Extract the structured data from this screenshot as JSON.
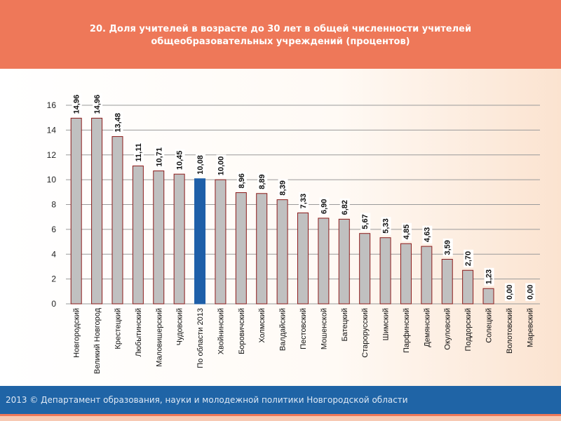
{
  "header": {
    "title_line1": "20. Доля учителей в возрасте до 30 лет в общей численности учителей",
    "title_line2": "общеобразовательных учреждений (процентов)"
  },
  "footer": {
    "text": "2013 © Департамент образования, науки и молодежной политики Новгородской области"
  },
  "colors": {
    "bar_fill": "#c0c0c0",
    "bar_edge": "#8b1a1a",
    "highlight_fill": "#1e5fa8",
    "header_bg": "#ee7859",
    "footer_bg": "#1f64a6"
  },
  "chart_data": {
    "type": "bar",
    "title": "20. Доля учителей в возрасте до 30 лет в общей численности учителей общеобразовательных учреждений (процентов)",
    "xlabel": "",
    "ylabel": "",
    "ylim": [
      0,
      16
    ],
    "yticks": [
      0,
      2,
      4,
      6,
      8,
      10,
      12,
      14,
      16
    ],
    "grid": true,
    "highlight_category": "По области 2013",
    "categories": [
      "Новгородский",
      "Великий Новгород",
      "Крестецкий",
      "Любытинский",
      "Маловишерский",
      "Чудовский",
      "По области 2013",
      "Хвойнинский",
      "Боровичский",
      "Холмский",
      "Валдайский",
      "Пестовский",
      "Мошенской",
      "Батецкий",
      "Старорусский",
      "Шимский",
      "Парфинский",
      "Демянский",
      "Окуловский",
      "Поддорский",
      "Солецкий",
      "Волотовский",
      "Маревский"
    ],
    "values": [
      14.96,
      14.96,
      13.48,
      11.11,
      10.71,
      10.45,
      10.08,
      10.0,
      8.96,
      8.89,
      8.39,
      7.33,
      6.9,
      6.82,
      5.67,
      5.33,
      4.85,
      4.63,
      3.59,
      2.7,
      1.23,
      0.0,
      0.0
    ],
    "value_labels": [
      "14,96",
      "14,96",
      "13,48",
      "11,11",
      "10,71",
      "10,45",
      "10,08",
      "10,00",
      "8,96",
      "8,89",
      "8,39",
      "7,33",
      "6,90",
      "6,82",
      "5,67",
      "5,33",
      "4,85",
      "4,63",
      "3,59",
      "2,70",
      "1,23",
      "0,00",
      "0,00"
    ]
  }
}
